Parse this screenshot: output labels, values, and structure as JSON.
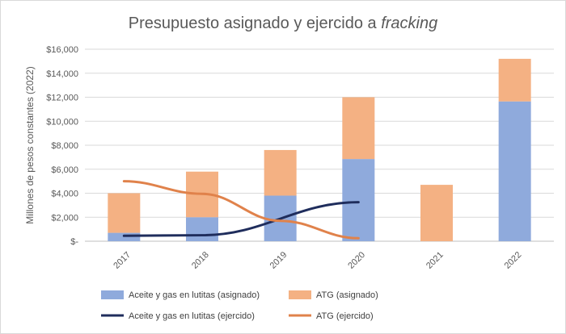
{
  "chart_data": {
    "type": "bar",
    "stacked": true,
    "title": "Presupuesto asignado y ejercido a ",
    "title_italic": "fracking",
    "ylabel": "Millones de pesos constantes (2022)",
    "xlabel": "",
    "categories": [
      "2017",
      "2018",
      "2019",
      "2020",
      "2021",
      "2022"
    ],
    "ylim": [
      0,
      16000
    ],
    "yticks": [
      0,
      2000,
      4000,
      6000,
      8000,
      10000,
      12000,
      14000,
      16000
    ],
    "ytick_labels": [
      "$-",
      "$2,000",
      "$4,000",
      "$6,000",
      "$8,000",
      "$10,000",
      "$12,000",
      "$14,000",
      "$16,000"
    ],
    "grid": true,
    "legend_position": "bottom",
    "bar_series": [
      {
        "name": "Aceite y gas en lutitas (asignado)",
        "color": "#8faadc",
        "values": [
          700,
          2000,
          3800,
          6850,
          0,
          11650
        ]
      },
      {
        "name": "ATG (asignado)",
        "color": "#f4b183",
        "values": [
          3300,
          3800,
          3800,
          5150,
          4700,
          3550
        ]
      }
    ],
    "line_series": [
      {
        "name": "Aceite y gas en lutitas (ejercido)",
        "color": "#1f2d5c",
        "values": [
          450,
          500,
          null,
          3250,
          null,
          null
        ]
      },
      {
        "name": "ATG (ejercido)",
        "color": "#e0824b",
        "values": [
          5000,
          3950,
          1700,
          250,
          null,
          null
        ]
      }
    ]
  }
}
